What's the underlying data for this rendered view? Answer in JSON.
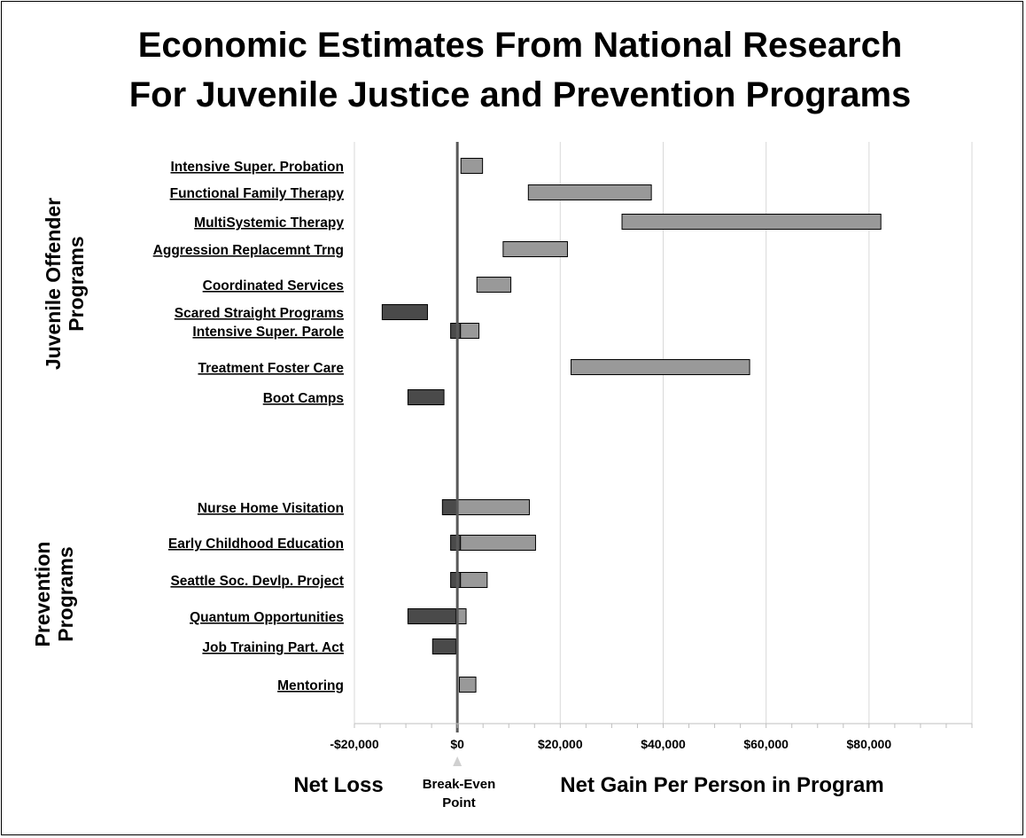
{
  "chart_data": {
    "type": "bar",
    "orientation": "horizontal",
    "style": "floating-range",
    "title": [
      "Economic Estimates From National Research",
      "For Juvenile Justice and Prevention Programs"
    ],
    "xlabel": "",
    "ylabel": "",
    "xlim": [
      -20000,
      100000
    ],
    "x_ticks": [
      -20000,
      0,
      20000,
      40000,
      60000,
      80000
    ],
    "x_tick_labels": [
      "-$20,000",
      "$0",
      "$20,000",
      "$40,000",
      "$60,000",
      "$80,000"
    ],
    "grid": "vertical",
    "colors": {
      "gain": "#999999",
      "loss": "#4a4a4a",
      "zero_line": "#595959",
      "grid": "#d9d9d9"
    },
    "groups": [
      {
        "label": "Juvenile Offender Programs",
        "label_lines": [
          "Juvenile Offender",
          "Programs"
        ]
      },
      {
        "label": "Prevention Programs",
        "label_lines": [
          "Prevention",
          "Programs"
        ]
      }
    ],
    "categories": [
      {
        "label": "Intensive Super. Probation",
        "group": 0,
        "loss": null,
        "gain": [
          700,
          4900
        ]
      },
      {
        "label": "Functional Family Therapy",
        "group": 0,
        "loss": null,
        "gain": [
          13800,
          37700
        ]
      },
      {
        "label": "MultiSystemic Therapy",
        "group": 0,
        "loss": null,
        "gain": [
          32000,
          82300
        ]
      },
      {
        "label": "Aggression Replacemnt Trng",
        "group": 0,
        "loss": null,
        "gain": [
          8900,
          21400
        ]
      },
      {
        "label": "Coordinated Services",
        "group": 0,
        "loss": null,
        "gain": [
          3800,
          10400
        ]
      },
      {
        "label": "Scared Straight Programs",
        "group": 0,
        "loss": [
          -14600,
          -5800
        ],
        "gain": null
      },
      {
        "label": "Intensive Super. Parole",
        "group": 0,
        "loss": [
          -1300,
          600
        ],
        "gain": [
          600,
          4200
        ]
      },
      {
        "label": "Treatment Foster Care",
        "group": 0,
        "loss": null,
        "gain": [
          22100,
          56800
        ]
      },
      {
        "label": "Boot Camps",
        "group": 0,
        "loss": [
          -9600,
          -2600
        ],
        "gain": null
      },
      {
        "label": "Nurse Home Visitation",
        "group": 1,
        "loss": [
          -2900,
          0
        ],
        "gain": [
          0,
          14000
        ]
      },
      {
        "label": "Early Childhood Education",
        "group": 1,
        "loss": [
          -1300,
          600
        ],
        "gain": [
          600,
          15200
        ]
      },
      {
        "label": "Seattle Soc. Devlp. Project",
        "group": 1,
        "loss": [
          -1300,
          600
        ],
        "gain": [
          600,
          5800
        ]
      },
      {
        "label": "Quantum Opportunities",
        "group": 1,
        "loss": [
          -9600,
          -300
        ],
        "gain": [
          -300,
          1700
        ]
      },
      {
        "label": "Job Training Part. Act",
        "group": 1,
        "loss": [
          -4800,
          -300
        ],
        "gain": null
      },
      {
        "label": "Mentoring",
        "group": 1,
        "loss": null,
        "gain": [
          400,
          3600
        ]
      }
    ],
    "annotations": {
      "net_loss": "Net Loss",
      "break_even": [
        "Break-Even",
        "Point"
      ],
      "net_gain": "Net Gain Per Person in Program"
    }
  }
}
